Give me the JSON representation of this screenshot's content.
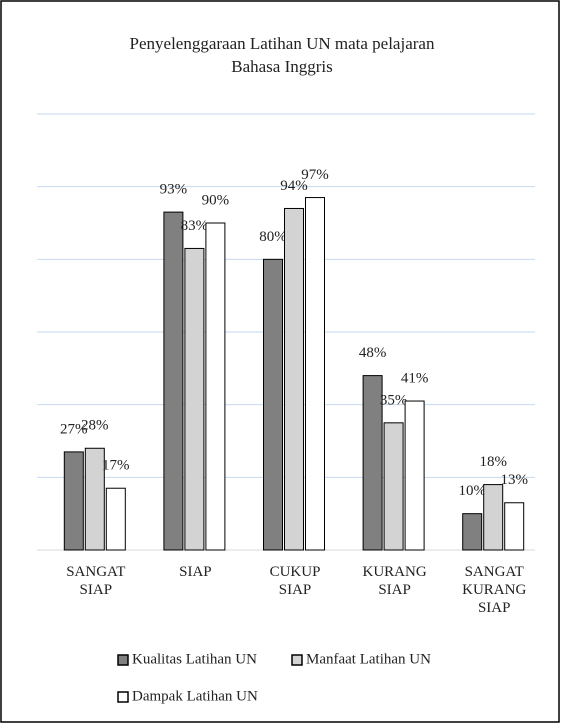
{
  "chart_data": {
    "type": "bar",
    "title": "Penyelenggaraan Latihan UN mata pelajaran Bahasa Inggris",
    "categories": [
      "SANGAT SIAP",
      "SIAP",
      "CUKUP SIAP",
      "KURANG SIAP",
      "SANGAT KURANG SIAP"
    ],
    "series": [
      {
        "name": "Kualitas Latihan UN",
        "color": "#808080",
        "values": [
          27,
          93,
          80,
          48,
          10
        ],
        "value_labels": [
          "27%",
          "93%",
          "80%",
          "48%",
          "10%"
        ]
      },
      {
        "name": "Manfaat Latihan UN",
        "color": "#d3d3d3",
        "values": [
          28,
          83,
          94,
          35,
          18
        ],
        "value_labels": [
          "28%",
          "83%",
          "94%",
          "35%",
          "18%"
        ]
      },
      {
        "name": "Dampak Latihan UN",
        "color": "#ffffff",
        "values": [
          17,
          90,
          97,
          41,
          13
        ],
        "value_labels": [
          "17%",
          "90%",
          "97%",
          "41%",
          "13%"
        ]
      }
    ],
    "ylim": [
      0,
      120
    ],
    "yticks": [
      0,
      20,
      40,
      60,
      80,
      100,
      120
    ],
    "grid": true
  }
}
